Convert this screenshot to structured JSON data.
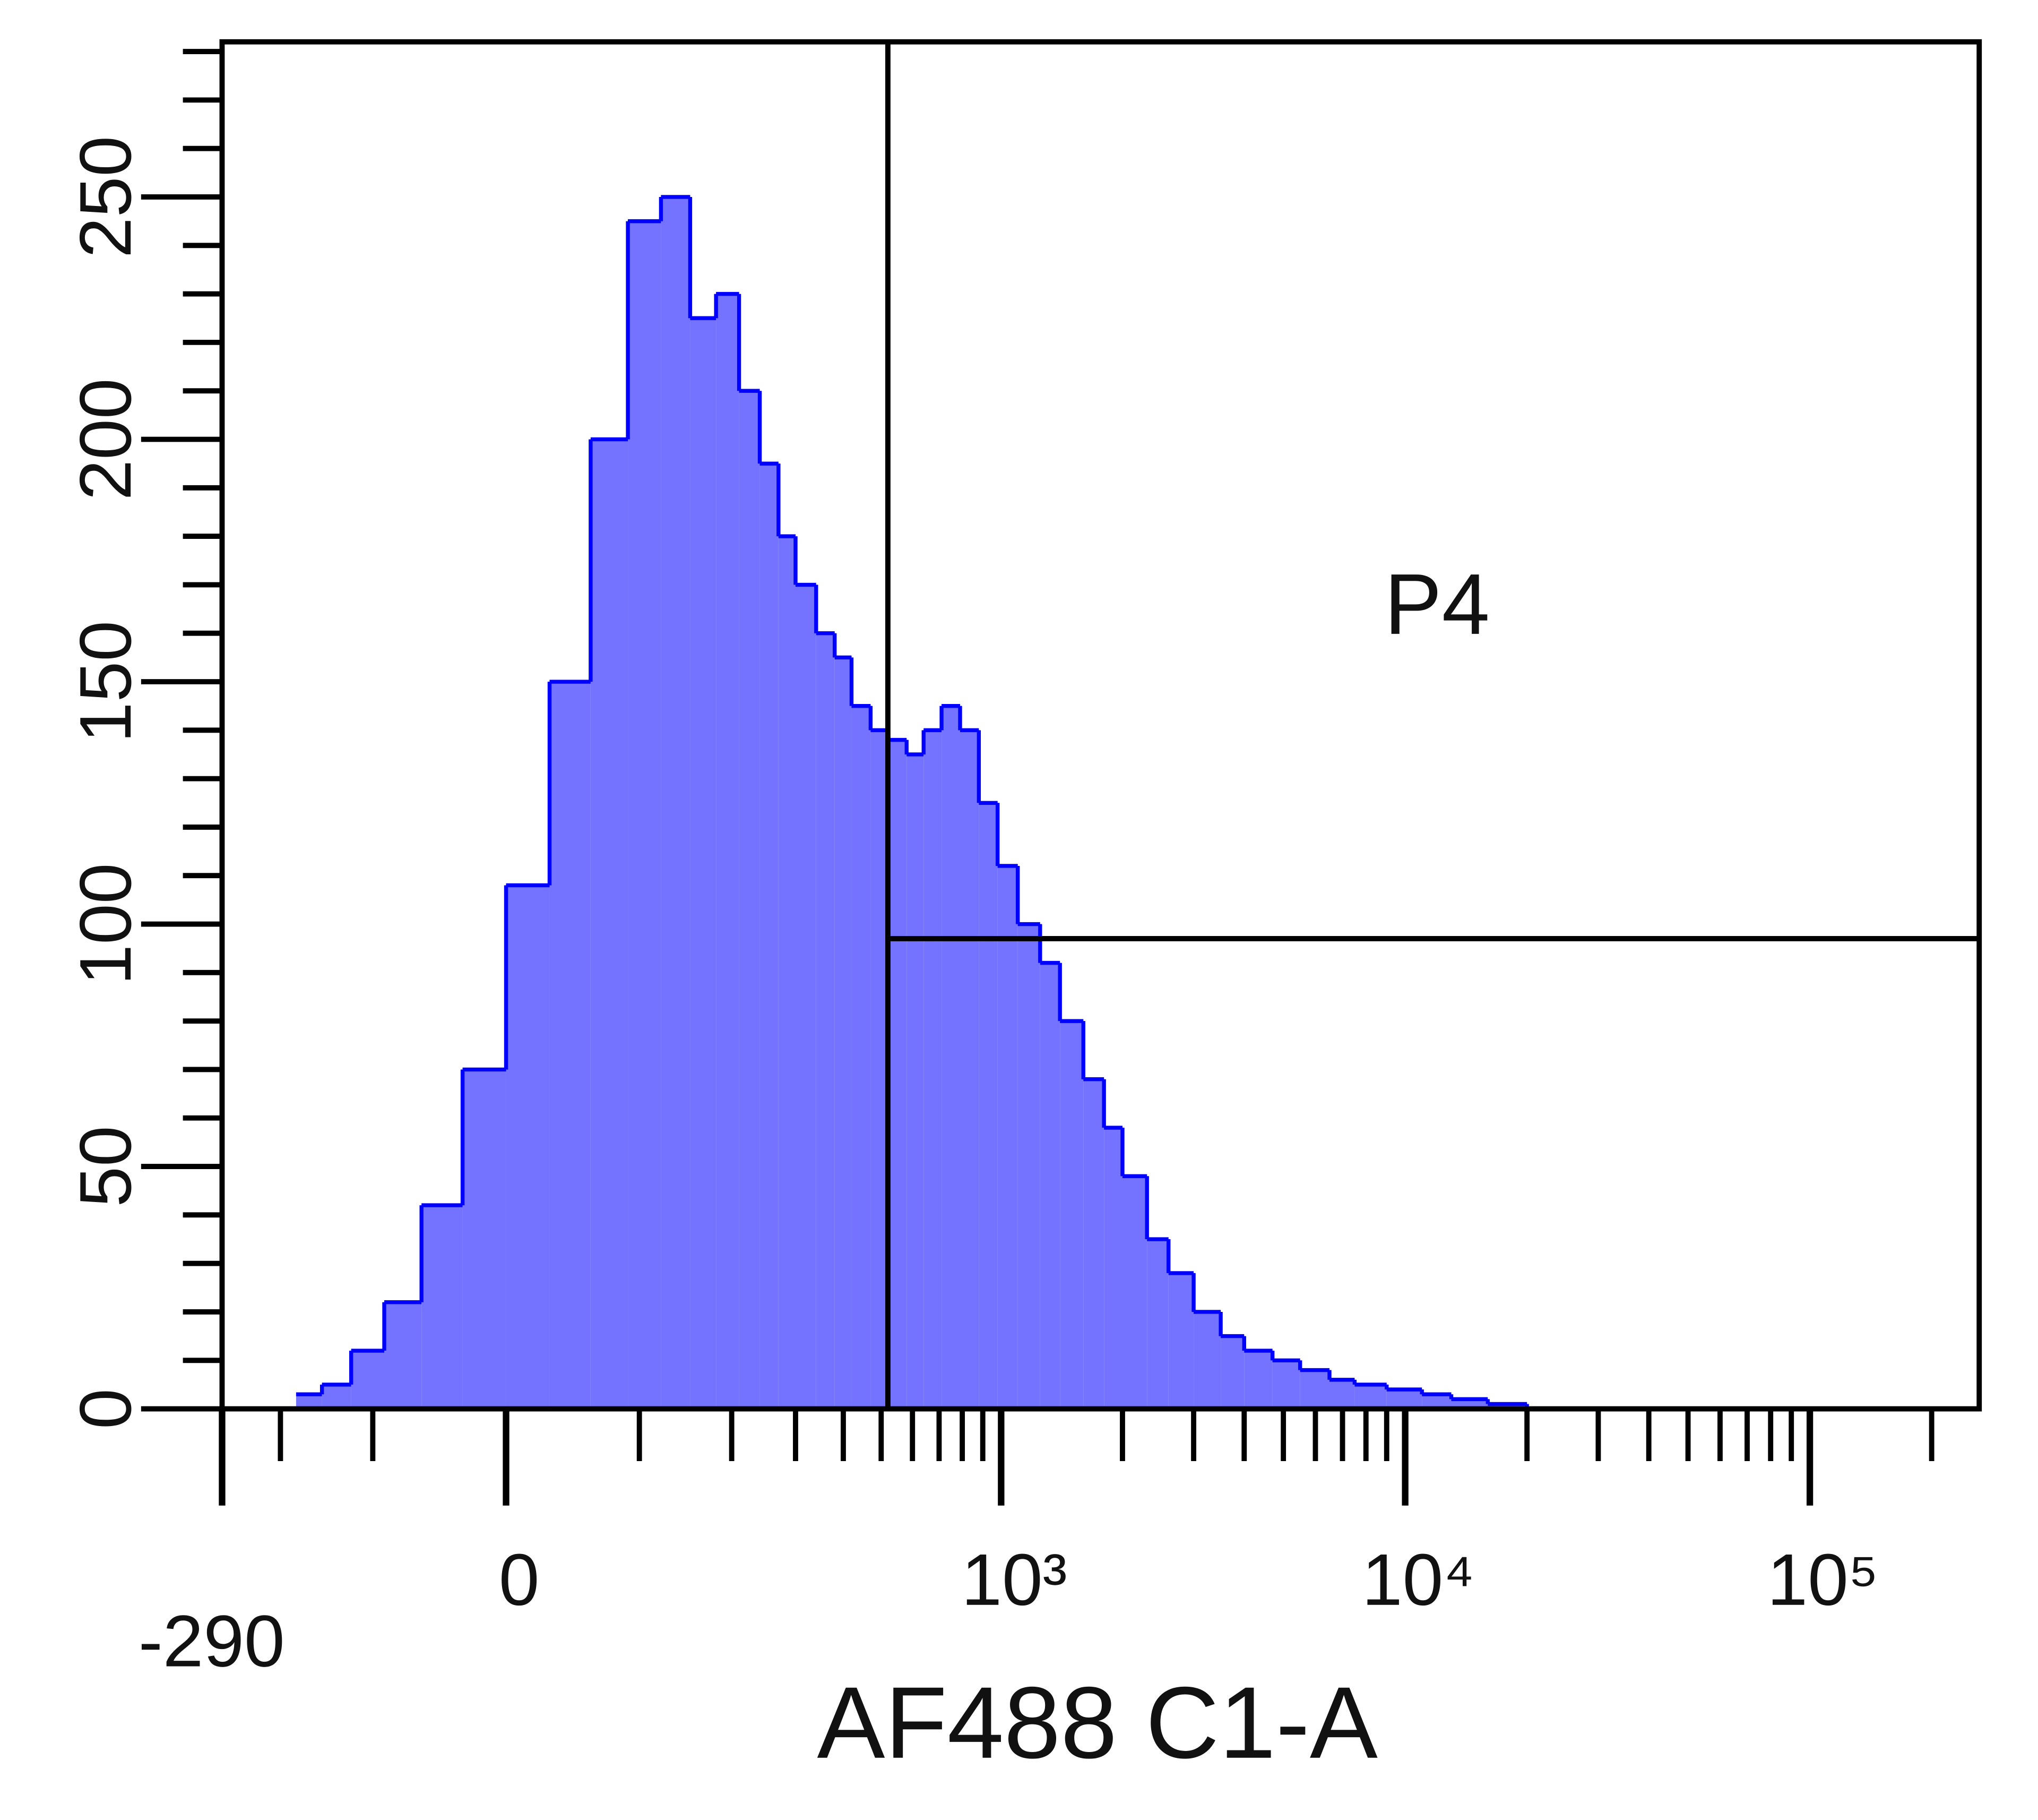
{
  "chart_data": {
    "type": "histogram",
    "xlabel": "AF488 C1-A",
    "xscale": "biexponential",
    "xlim": [
      -290,
      262144
    ],
    "xticks": [
      -290,
      0,
      {
        "value": 1000,
        "label": "10³"
      },
      {
        "value": 10000,
        "label": "10⁴"
      },
      {
        "value": 100000,
        "label": "10⁵"
      }
    ],
    "xminorticks": [
      -200,
      -100,
      100,
      200,
      300,
      400,
      500,
      600,
      700,
      800,
      900,
      2000,
      3000,
      4000,
      5000,
      6000,
      7000,
      8000,
      9000,
      20000,
      30000,
      40000,
      50000,
      60000,
      70000,
      80000,
      90000,
      200000
    ],
    "ylim": [
      0,
      282
    ],
    "yticks": [
      0,
      50,
      100,
      150,
      200,
      250
    ],
    "yminorticks": [
      10,
      20,
      30,
      40,
      60,
      70,
      80,
      90,
      110,
      120,
      130,
      140,
      160,
      170,
      180,
      190,
      210,
      220,
      230,
      240,
      260,
      270,
      280
    ],
    "bins": [
      -180,
      -150,
      -120,
      -90,
      -60,
      -30,
      0,
      30,
      60,
      90,
      120,
      150,
      180,
      210,
      240,
      270,
      300,
      340,
      380,
      420,
      470,
      520,
      580,
      640,
      710,
      790,
      880,
      980,
      1100,
      1250,
      1400,
      1600,
      1800,
      2000,
      2300,
      2600,
      3000,
      3500,
      4000,
      4700,
      5500,
      6500,
      7500,
      9000,
      11000,
      13000,
      16000,
      20000,
      25000,
      32000,
      40000,
      50000
    ],
    "counts": [
      3,
      5,
      12,
      22,
      42,
      70,
      108,
      150,
      200,
      245,
      250,
      225,
      230,
      210,
      195,
      180,
      170,
      160,
      155,
      145,
      140,
      138,
      135,
      140,
      145,
      140,
      125,
      112,
      100,
      92,
      80,
      68,
      58,
      48,
      35,
      28,
      20,
      15,
      12,
      10,
      8,
      6,
      5,
      4,
      3,
      2,
      1,
      0,
      0,
      0,
      0
    ],
    "color": "#7373ff",
    "edge_color": "#0000ff",
    "gate": {
      "label": "P4",
      "x": [
        520,
        262144
      ],
      "y": 97
    }
  }
}
